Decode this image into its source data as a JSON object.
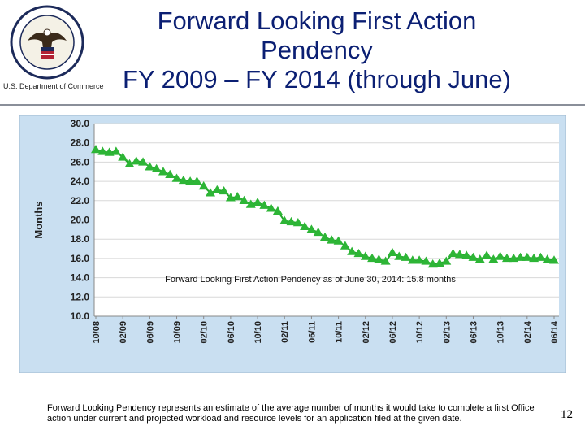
{
  "header": {
    "title_lines": [
      "Forward Looking First Action",
      "Pendency",
      "FY 2009 – FY 2014 (through June)"
    ],
    "department": "U.S. Department of Commerce",
    "seal_icon": "uspto-seal-icon"
  },
  "chart_data": {
    "type": "line",
    "ylabel": "Months",
    "ylim": [
      10.0,
      30.0
    ],
    "yticks": [
      "10.0",
      "12.0",
      "14.0",
      "16.0",
      "18.0",
      "20.0",
      "22.0",
      "24.0",
      "26.0",
      "28.0",
      "30.0"
    ],
    "xticks": [
      "10/08",
      "02/09",
      "06/09",
      "10/09",
      "02/10",
      "06/10",
      "10/10",
      "02/11",
      "06/11",
      "10/11",
      "02/12",
      "06/12",
      "10/12",
      "02/13",
      "06/13",
      "10/13",
      "02/14",
      "06/14"
    ],
    "annotation": "Forward Looking First Action Pendency as of June 30, 2014: 15.8 months",
    "colors": {
      "background": "#c9dff1",
      "line": "#22a72a",
      "marker": "#2db536",
      "plot_bg": "#ffffff"
    },
    "series": [
      {
        "values": [
          27.3,
          27.1,
          27.0,
          27.1,
          26.5,
          25.8,
          26.1,
          26.0,
          25.5,
          25.3,
          25.0,
          24.7,
          24.3,
          24.1,
          24.0,
          24.0,
          23.5,
          22.8,
          23.1,
          23.0,
          22.3,
          22.4,
          22.0,
          21.6,
          21.8,
          21.5,
          21.2,
          20.9,
          19.9,
          19.8,
          19.7,
          19.3,
          19.0,
          18.7,
          18.2,
          17.9,
          17.8,
          17.3,
          16.7,
          16.5,
          16.2,
          16.0,
          15.9,
          15.7,
          16.6,
          16.2,
          16.1,
          15.8,
          15.8,
          15.7,
          15.4,
          15.5,
          15.7,
          16.5,
          16.4,
          16.3,
          16.1,
          15.9,
          16.3,
          15.9,
          16.2,
          16.0,
          16.0,
          16.1,
          16.1,
          16.0,
          16.1,
          15.9,
          15.8
        ]
      }
    ]
  },
  "footnote": "Forward Looking Pendency represents an estimate of the average number of months it would take to complete a first Office action under current and projected workload and resource levels for an application filed at the given date.",
  "page_number": "12"
}
